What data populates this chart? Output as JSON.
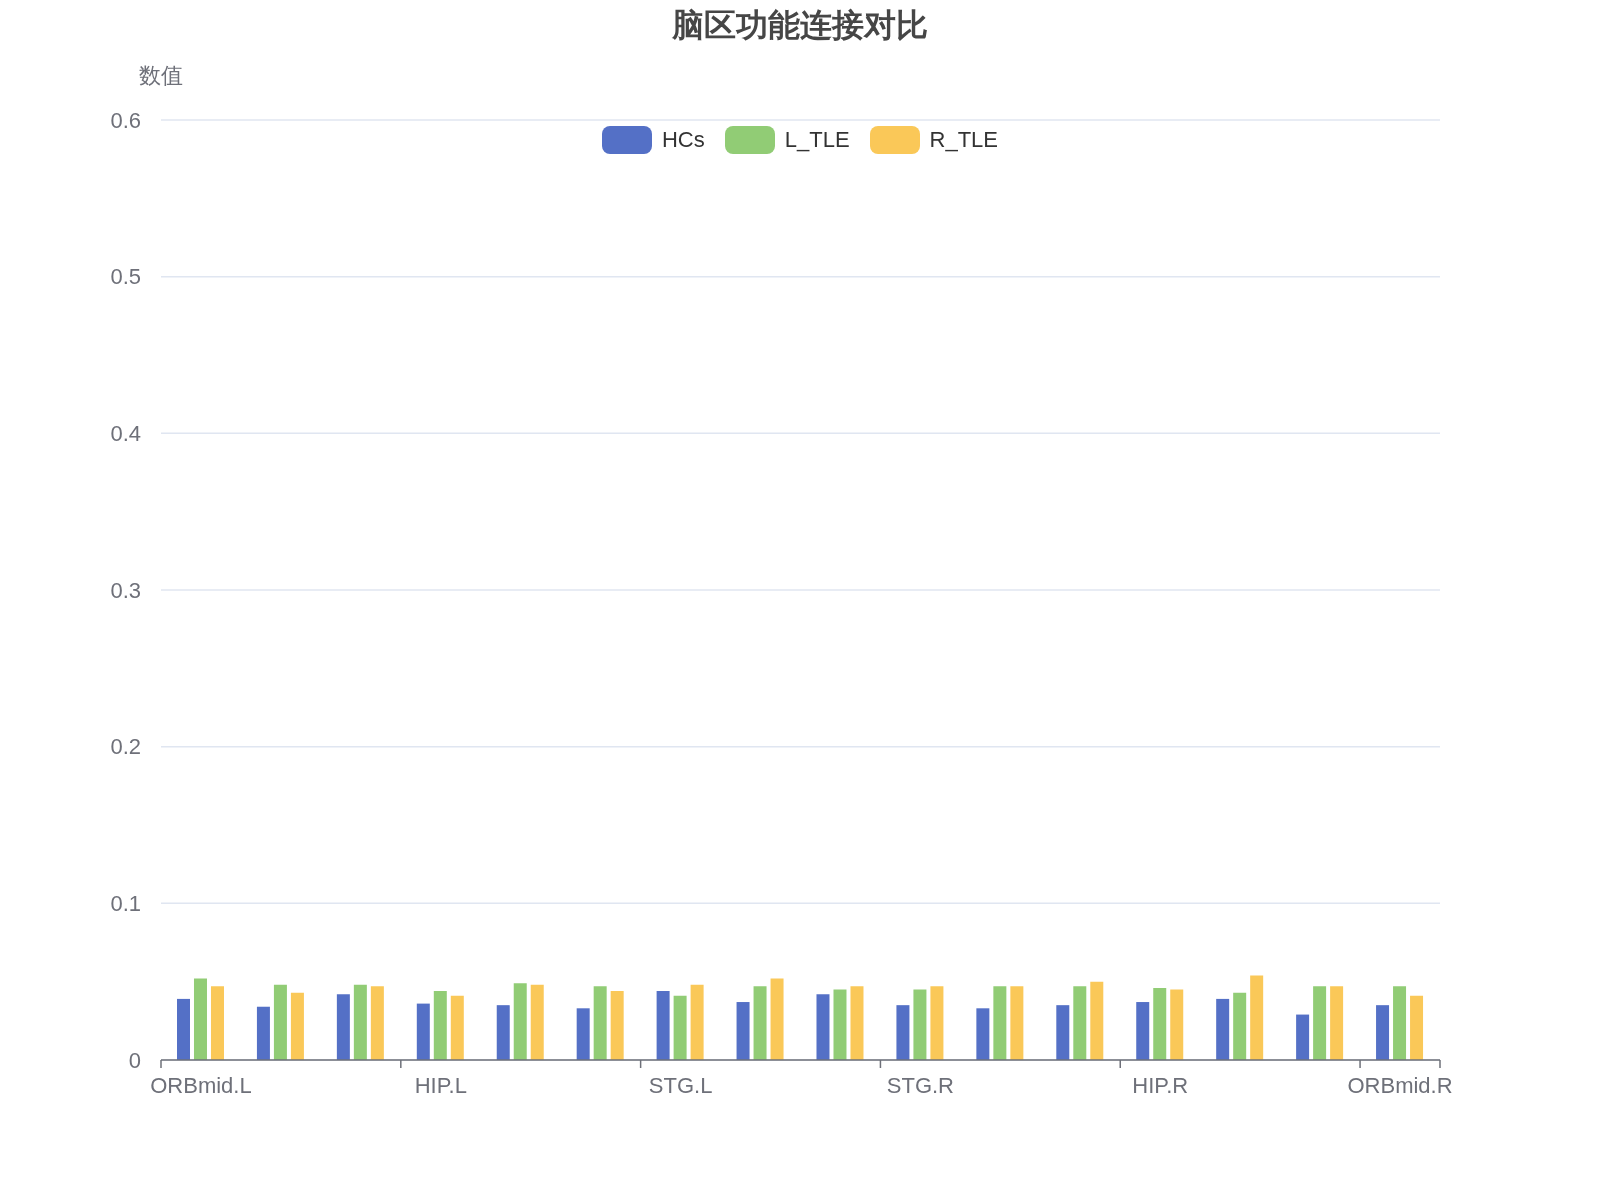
{
  "chart_data": {
    "type": "bar",
    "title": "脑区功能连接对比",
    "ylabel": "数值",
    "categories": [
      "ORBmid.L",
      null,
      null,
      "HIP.L",
      null,
      null,
      "STG.L",
      null,
      null,
      "STG.R",
      null,
      null,
      "HIP.R",
      null,
      null,
      "ORBmid.R"
    ],
    "series": [
      {
        "name": "HCs",
        "color": "#5470c6",
        "values": [
          0.039,
          0.034,
          0.042,
          0.036,
          0.035,
          0.033,
          0.044,
          0.037,
          0.042,
          0.035,
          0.033,
          0.035,
          0.037,
          0.039,
          0.029,
          0.035
        ]
      },
      {
        "name": "L_TLE",
        "color": "#91cc75",
        "values": [
          0.052,
          0.048,
          0.048,
          0.044,
          0.049,
          0.047,
          0.041,
          0.047,
          0.045,
          0.045,
          0.047,
          0.047,
          0.046,
          0.043,
          0.047,
          0.047
        ]
      },
      {
        "name": "R_TLE",
        "color": "#fac858",
        "values": [
          0.047,
          0.043,
          0.047,
          0.041,
          0.048,
          0.044,
          0.048,
          0.052,
          0.047,
          0.047,
          0.047,
          0.05,
          0.045,
          0.054,
          0.047,
          0.041
        ]
      }
    ],
    "ylim": [
      0,
      0.6
    ],
    "yticks": [
      0,
      0.1,
      0.2,
      0.3,
      0.4,
      0.5,
      0.6
    ],
    "grid": "y",
    "legend": "top"
  }
}
